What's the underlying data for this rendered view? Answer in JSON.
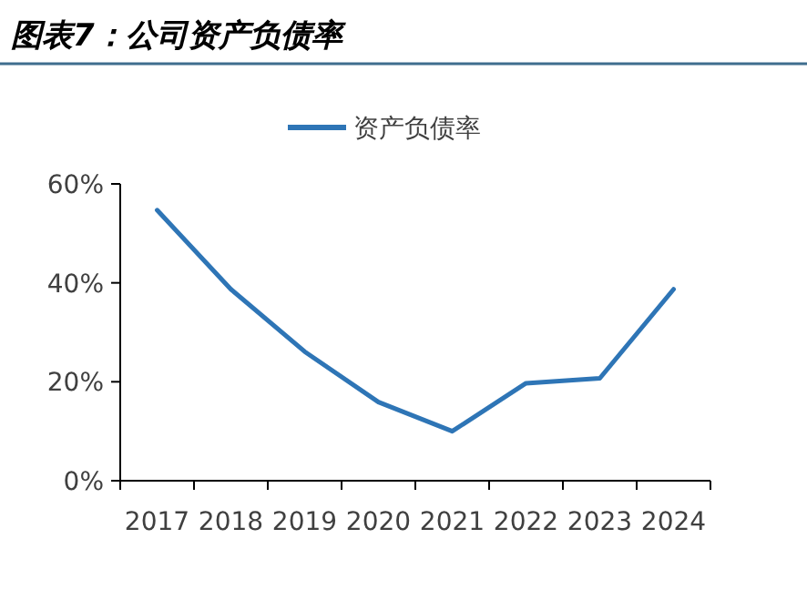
{
  "chart_data": {
    "type": "line",
    "title": "图表7：公司资产负债率",
    "categories": [
      "2017",
      "2018",
      "2019",
      "2020",
      "2021",
      "2022",
      "2023",
      "2024"
    ],
    "series": [
      {
        "name": "资产负债率",
        "color": "#2e75b6",
        "values": [
          54.7,
          38.7,
          26.1,
          15.9,
          10.0,
          19.7,
          20.7,
          38.7
        ]
      }
    ],
    "ylim": [
      0,
      60
    ],
    "yticks": [
      {
        "value": 0,
        "label": "0%"
      },
      {
        "value": 20,
        "label": "20%"
      },
      {
        "value": 40,
        "label": "40%"
      },
      {
        "value": 60,
        "label": "60%"
      }
    ],
    "legend": "top",
    "grid": false,
    "marker": "none",
    "line_style": "solid"
  }
}
